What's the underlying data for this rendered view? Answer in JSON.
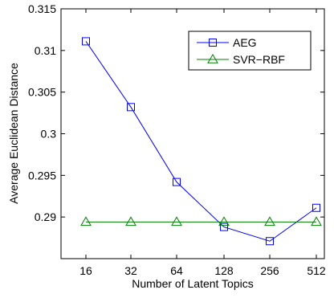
{
  "chart_data": {
    "type": "line",
    "title": "",
    "xlabel": "Number of Latent Topics",
    "ylabel": "Average Euclidean Distance",
    "categories": [
      "16",
      "32",
      "64",
      "128",
      "256",
      "512"
    ],
    "ylim": [
      0.285,
      0.315
    ],
    "yticks": [
      "0.29",
      "0.295",
      "0.3",
      "0.305",
      "0.31",
      "0.315"
    ],
    "yticks_values": [
      0.29,
      0.295,
      0.3,
      0.305,
      0.31,
      0.315
    ],
    "grid": false,
    "legend_position": "top-right",
    "series": [
      {
        "name": "AEG",
        "color": "#0000ff",
        "marker": "square",
        "values": [
          0.3111,
          0.3032,
          0.2942,
          0.2888,
          0.2871,
          0.2911
        ]
      },
      {
        "name": "SVR−RBF",
        "color": "#008000",
        "marker": "triangle",
        "values": [
          0.2894,
          0.2894,
          0.2894,
          0.2894,
          0.2894,
          0.2894
        ]
      }
    ]
  }
}
